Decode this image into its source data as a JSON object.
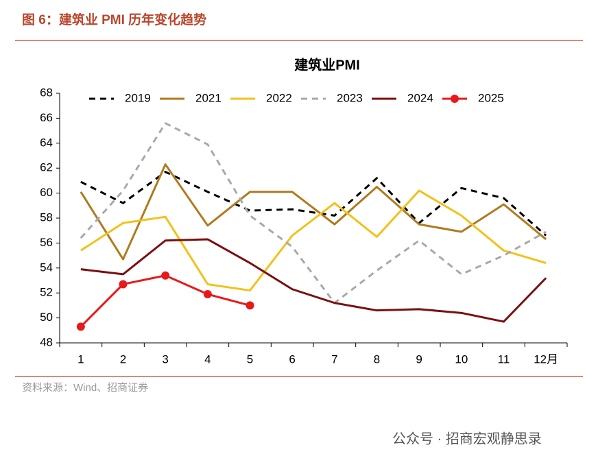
{
  "header": {
    "title": "图 6：建筑业 PMI 历年变化趋势"
  },
  "chart_data": {
    "type": "line",
    "title": "建筑业PMI",
    "categories": [
      "1",
      "2",
      "3",
      "4",
      "5",
      "6",
      "7",
      "8",
      "9",
      "10",
      "11",
      "12月"
    ],
    "series": [
      {
        "name": "2019",
        "color": "#000000",
        "dash": true,
        "values": [
          60.9,
          59.2,
          61.7,
          60.1,
          58.6,
          58.7,
          58.2,
          61.2,
          57.6,
          60.4,
          59.6,
          56.6
        ]
      },
      {
        "name": "2021",
        "color": "#b07a1e",
        "values": [
          60.1,
          54.7,
          62.3,
          57.4,
          60.1,
          60.1,
          57.5,
          60.5,
          57.5,
          56.9,
          59.1,
          56.3
        ]
      },
      {
        "name": "2022",
        "color": "#f2c21b",
        "values": [
          55.4,
          57.6,
          58.1,
          52.7,
          52.2,
          56.6,
          59.2,
          56.5,
          60.2,
          58.2,
          55.4,
          54.4
        ]
      },
      {
        "name": "2023",
        "color": "#a9a9a9",
        "dash": true,
        "values": [
          56.4,
          60.2,
          65.6,
          63.9,
          58.2,
          55.7,
          51.2,
          53.8,
          56.2,
          53.5,
          55.0,
          56.9
        ]
      },
      {
        "name": "2024",
        "color": "#7b0e10",
        "values": [
          53.9,
          53.5,
          56.2,
          56.3,
          54.4,
          52.3,
          51.2,
          50.6,
          50.7,
          50.4,
          49.7,
          53.2
        ]
      },
      {
        "name": "2025",
        "color": "#e8191a",
        "markers": true,
        "values": [
          49.3,
          52.7,
          53.4,
          51.9,
          51.0,
          null,
          null,
          null,
          null,
          null,
          null,
          null
        ]
      }
    ],
    "ylim": [
      48,
      68
    ],
    "yticks": [
      48,
      50,
      52,
      54,
      56,
      58,
      60,
      62,
      64,
      66,
      68
    ],
    "grid": false,
    "legend": "top"
  },
  "footer": {
    "source": "资料来源：Wind、招商证券",
    "watermark": "公众号 · 招商宏观静思录"
  }
}
